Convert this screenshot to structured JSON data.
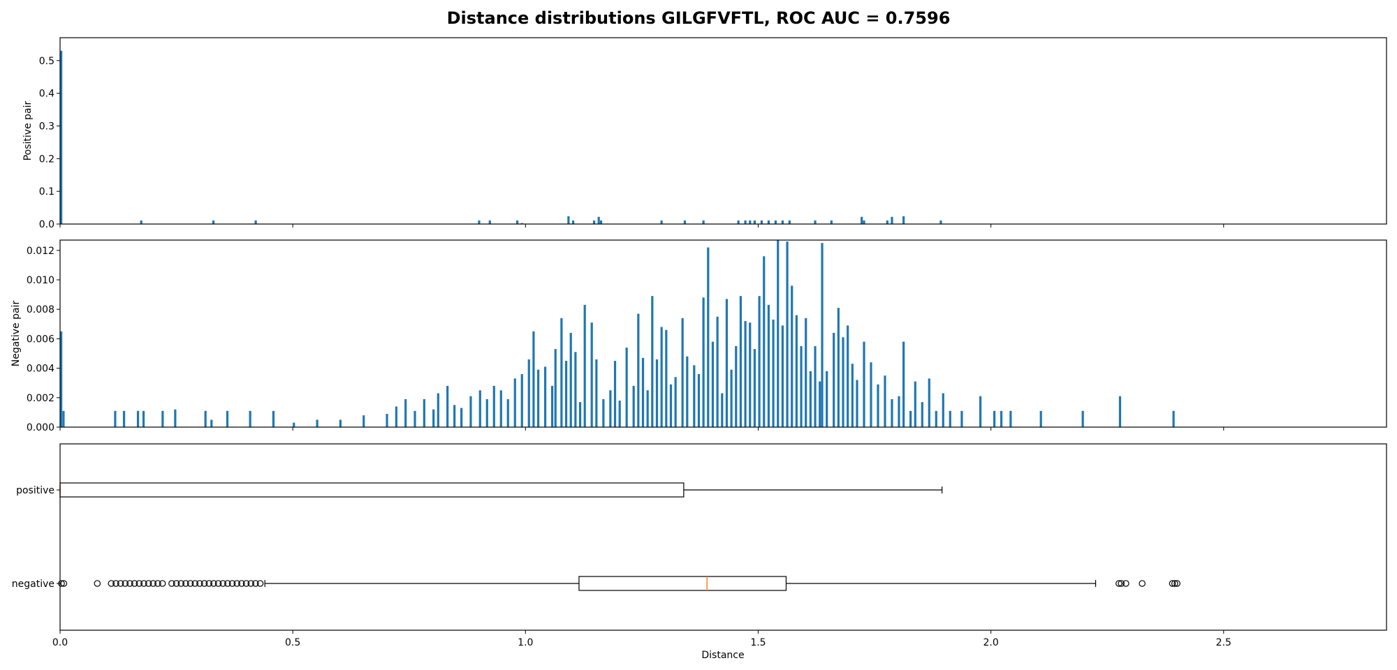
{
  "chart_data": {
    "title": "Distance distributions GILGFVFTL, ROC AUC = 0.7596",
    "xlabel": "Distance",
    "xlim": [
      0,
      2.85
    ],
    "x_ticks": [
      0.0,
      0.5,
      1.0,
      1.5,
      2.0,
      2.5
    ],
    "x_tick_labels": [
      "0.0",
      "0.5",
      "1.0",
      "1.5",
      "2.0",
      "2.5"
    ],
    "bar_color": "#1f77b4",
    "median_color": "#ff7f0e",
    "panels": [
      {
        "type": "bar",
        "ylabel": "Positive pair",
        "ylim": [
          0,
          0.57
        ],
        "y_ticks": [
          0.0,
          0.1,
          0.2,
          0.3,
          0.4,
          0.5
        ],
        "y_tick_labels": [
          "0.0",
          "0.1",
          "0.2",
          "0.3",
          "0.4",
          "0.5"
        ],
        "bin_width": 0.0048,
        "bars": [
          [
            0.0,
            0.53
          ],
          [
            0.172,
            0.011
          ],
          [
            0.327,
            0.011
          ],
          [
            0.418,
            0.011
          ],
          [
            0.898,
            0.011
          ],
          [
            0.921,
            0.011
          ],
          [
            0.98,
            0.011
          ],
          [
            0.99,
            0.003
          ],
          [
            1.09,
            0.024
          ],
          [
            1.1,
            0.011
          ],
          [
            1.145,
            0.011
          ],
          [
            1.155,
            0.022
          ],
          [
            1.16,
            0.011
          ],
          [
            1.29,
            0.011
          ],
          [
            1.34,
            0.011
          ],
          [
            1.38,
            0.011
          ],
          [
            1.455,
            0.011
          ],
          [
            1.47,
            0.011
          ],
          [
            1.48,
            0.011
          ],
          [
            1.49,
            0.011
          ],
          [
            1.505,
            0.011
          ],
          [
            1.52,
            0.011
          ],
          [
            1.535,
            0.011
          ],
          [
            1.55,
            0.011
          ],
          [
            1.565,
            0.011
          ],
          [
            1.62,
            0.011
          ],
          [
            1.655,
            0.011
          ],
          [
            1.72,
            0.022
          ],
          [
            1.725,
            0.011
          ],
          [
            1.775,
            0.011
          ],
          [
            1.785,
            0.022
          ],
          [
            1.81,
            0.024
          ],
          [
            1.89,
            0.011
          ]
        ]
      },
      {
        "type": "bar",
        "ylabel": "Negative pair",
        "ylim": [
          0,
          0.0127
        ],
        "y_ticks": [
          0.0,
          0.002,
          0.004,
          0.006,
          0.008,
          0.01,
          0.012
        ],
        "y_tick_labels": [
          "0.000",
          "0.002",
          "0.004",
          "0.006",
          "0.008",
          "0.010",
          "0.012"
        ],
        "bin_width": 0.0048,
        "bars": [
          [
            0.0,
            0.0065
          ],
          [
            0.005,
            0.0011
          ],
          [
            0.116,
            0.0011
          ],
          [
            0.135,
            0.0011
          ],
          [
            0.165,
            0.0011
          ],
          [
            0.177,
            0.0011
          ],
          [
            0.218,
            0.0011
          ],
          [
            0.245,
            0.0012
          ],
          [
            0.31,
            0.0011
          ],
          [
            0.323,
            0.0005
          ],
          [
            0.357,
            0.0011
          ],
          [
            0.406,
            0.0011
          ],
          [
            0.456,
            0.0011
          ],
          [
            0.5,
            0.0003
          ],
          [
            0.55,
            0.0005
          ],
          [
            0.6,
            0.0005
          ],
          [
            0.65,
            0.0008
          ],
          [
            0.7,
            0.0009
          ],
          [
            0.72,
            0.0014
          ],
          [
            0.74,
            0.0019
          ],
          [
            0.76,
            0.0011
          ],
          [
            0.78,
            0.0019
          ],
          [
            0.8,
            0.0012
          ],
          [
            0.81,
            0.0023
          ],
          [
            0.83,
            0.0028
          ],
          [
            0.845,
            0.0015
          ],
          [
            0.86,
            0.0013
          ],
          [
            0.88,
            0.0021
          ],
          [
            0.9,
            0.0025
          ],
          [
            0.915,
            0.0019
          ],
          [
            0.93,
            0.0028
          ],
          [
            0.945,
            0.0025
          ],
          [
            0.96,
            0.0019
          ],
          [
            0.975,
            0.0033
          ],
          [
            0.99,
            0.0036
          ],
          [
            1.005,
            0.0046
          ],
          [
            1.015,
            0.0065
          ],
          [
            1.025,
            0.0039
          ],
          [
            1.04,
            0.0041
          ],
          [
            1.055,
            0.0028
          ],
          [
            1.062,
            0.0053
          ],
          [
            1.075,
            0.0074
          ],
          [
            1.085,
            0.0045
          ],
          [
            1.095,
            0.0064
          ],
          [
            1.105,
            0.0051
          ],
          [
            1.115,
            0.0017
          ],
          [
            1.125,
            0.0083
          ],
          [
            1.14,
            0.0071
          ],
          [
            1.15,
            0.0046
          ],
          [
            1.165,
            0.0019
          ],
          [
            1.18,
            0.0025
          ],
          [
            1.19,
            0.0045
          ],
          [
            1.2,
            0.0018
          ],
          [
            1.215,
            0.0054
          ],
          [
            1.23,
            0.0028
          ],
          [
            1.24,
            0.0077
          ],
          [
            1.25,
            0.0047
          ],
          [
            1.26,
            0.0025
          ],
          [
            1.27,
            0.0089
          ],
          [
            1.28,
            0.0046
          ],
          [
            1.29,
            0.0068
          ],
          [
            1.3,
            0.0066
          ],
          [
            1.31,
            0.0029
          ],
          [
            1.32,
            0.0034
          ],
          [
            1.335,
            0.0074
          ],
          [
            1.345,
            0.0048
          ],
          [
            1.36,
            0.0042
          ],
          [
            1.37,
            0.0036
          ],
          [
            1.38,
            0.0088
          ],
          [
            1.39,
            0.0122
          ],
          [
            1.4,
            0.0058
          ],
          [
            1.41,
            0.0075
          ],
          [
            1.42,
            0.0023
          ],
          [
            1.43,
            0.0087
          ],
          [
            1.44,
            0.0039
          ],
          [
            1.45,
            0.0055
          ],
          [
            1.46,
            0.0089
          ],
          [
            1.47,
            0.0072
          ],
          [
            1.48,
            0.0071
          ],
          [
            1.49,
            0.0053
          ],
          [
            1.5,
            0.0089
          ],
          [
            1.51,
            0.0116
          ],
          [
            1.52,
            0.0083
          ],
          [
            1.53,
            0.0073
          ],
          [
            1.54,
            0.0127
          ],
          [
            1.55,
            0.0069
          ],
          [
            1.56,
            0.0126
          ],
          [
            1.57,
            0.0096
          ],
          [
            1.58,
            0.0076
          ],
          [
            1.59,
            0.0055
          ],
          [
            1.6,
            0.0074
          ],
          [
            1.61,
            0.0038
          ],
          [
            1.62,
            0.0055
          ],
          [
            1.63,
            0.0031
          ],
          [
            1.635,
            0.0125
          ],
          [
            1.645,
            0.0038
          ],
          [
            1.66,
            0.0064
          ],
          [
            1.67,
            0.0081
          ],
          [
            1.68,
            0.0061
          ],
          [
            1.69,
            0.0069
          ],
          [
            1.7,
            0.0043
          ],
          [
            1.71,
            0.0032
          ],
          [
            1.725,
            0.0058
          ],
          [
            1.74,
            0.0044
          ],
          [
            1.755,
            0.0029
          ],
          [
            1.77,
            0.0035
          ],
          [
            1.785,
            0.0019
          ],
          [
            1.8,
            0.0021
          ],
          [
            1.81,
            0.0058
          ],
          [
            1.825,
            0.0011
          ],
          [
            1.835,
            0.0031
          ],
          [
            1.85,
            0.0017
          ],
          [
            1.865,
            0.0033
          ],
          [
            1.88,
            0.0011
          ],
          [
            1.895,
            0.0023
          ],
          [
            1.91,
            0.0011
          ],
          [
            1.935,
            0.0011
          ],
          [
            1.975,
            0.0021
          ],
          [
            2.005,
            0.0011
          ],
          [
            2.02,
            0.0011
          ],
          [
            2.04,
            0.0011
          ],
          [
            2.105,
            0.0011
          ],
          [
            2.195,
            0.0011
          ],
          [
            2.275,
            0.0021
          ],
          [
            2.39,
            0.0011
          ]
        ]
      },
      {
        "type": "boxplot",
        "categories": [
          "positive",
          "negative"
        ],
        "boxes": [
          {
            "name": "positive",
            "whisker_low": 0.0,
            "q1": 0.0,
            "median": 0.0,
            "q3": 1.34,
            "whisker_high": 1.895,
            "outliers": []
          },
          {
            "name": "negative",
            "whisker_low": 0.44,
            "q1": 1.115,
            "median": 1.39,
            "q3": 1.56,
            "whisker_high": 2.225,
            "outliers": [
              0.003,
              0.008,
              0.08,
              0.11,
              0.12,
              0.13,
              0.14,
              0.15,
              0.16,
              0.17,
              0.18,
              0.19,
              0.2,
              0.21,
              0.22,
              0.24,
              0.25,
              0.26,
              0.27,
              0.28,
              0.29,
              0.3,
              0.31,
              0.32,
              0.33,
              0.34,
              0.35,
              0.36,
              0.37,
              0.38,
              0.39,
              0.4,
              0.41,
              0.42,
              0.43,
              2.275,
              2.28,
              2.29,
              2.325,
              2.39,
              2.395,
              2.4
            ]
          }
        ]
      }
    ]
  }
}
